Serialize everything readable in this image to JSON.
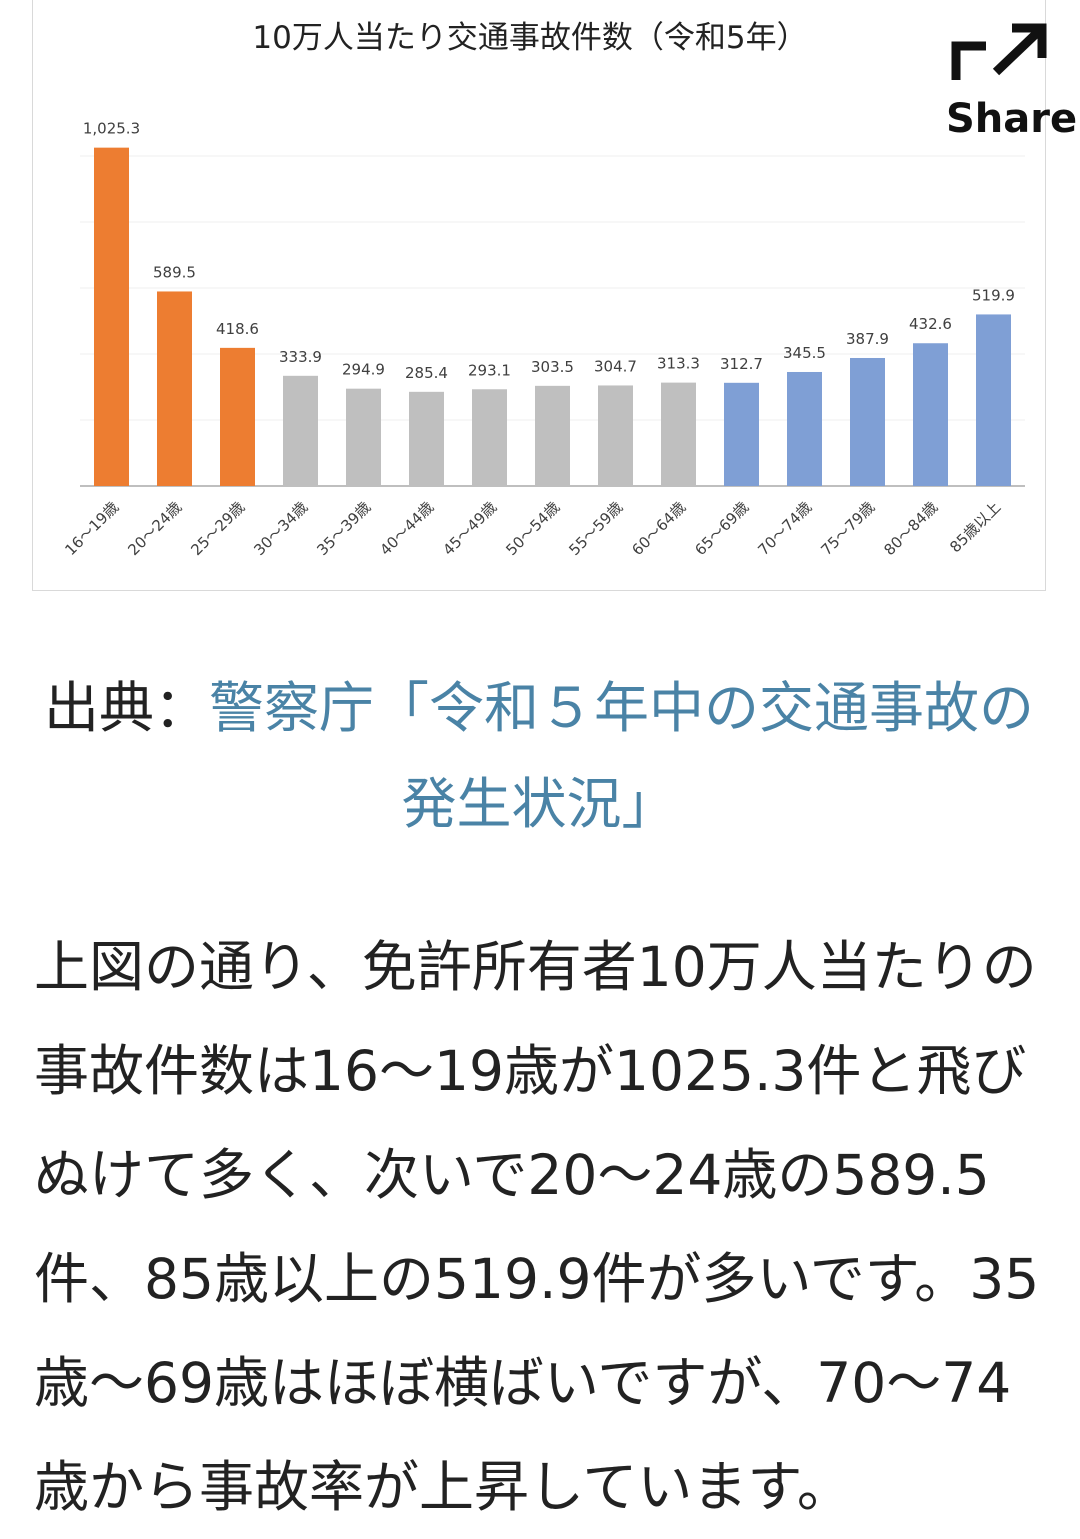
{
  "chart_data": {
    "type": "bar",
    "title": "10万人当たり交通事故件数（令和5年）",
    "categories": [
      "16～19歳",
      "20～24歳",
      "25～29歳",
      "30～34歳",
      "35～39歳",
      "40～44歳",
      "45～49歳",
      "50～54歳",
      "55～59歳",
      "60～64歳",
      "65～69歳",
      "70～74歳",
      "75～79歳",
      "80～84歳",
      "85歳以上"
    ],
    "values": [
      1025.3,
      589.5,
      418.6,
      333.9,
      294.9,
      285.4,
      293.1,
      303.5,
      304.7,
      313.3,
      312.7,
      345.5,
      387.9,
      432.6,
      519.9
    ],
    "value_labels": [
      "1,025.3",
      "589.5",
      "418.6",
      "333.9",
      "294.9",
      "285.4",
      "293.1",
      "303.5",
      "304.7",
      "313.3",
      "312.7",
      "345.5",
      "387.9",
      "432.6",
      "519.9"
    ],
    "bar_colors": [
      "#ed7d31",
      "#ed7d31",
      "#ed7d31",
      "#bfbfbf",
      "#bfbfbf",
      "#bfbfbf",
      "#bfbfbf",
      "#bfbfbf",
      "#bfbfbf",
      "#bfbfbf",
      "#7f9fd5",
      "#7f9fd5",
      "#7f9fd5",
      "#7f9fd5",
      "#7f9fd5"
    ],
    "ylim": [
      0,
      1000
    ],
    "grid": true,
    "xlabel": "",
    "ylabel": ""
  },
  "share": {
    "label": "Share",
    "icon": "share-arrow-icon"
  },
  "source": {
    "prefix": "出典：",
    "link_text": "警察庁「令和５年中の交通事故の発生状況」"
  },
  "body": {
    "paragraph": "上図の通り、免許所有者10万人当たりの事故件数は16～19歳が1025.3件と飛びぬけて多く、次いで20～24歳の589.5件、85歳以上の519.9件が多いです。35歳～69歳はほぼ横ばいですが、70～74歳から事故率が上昇しています。"
  },
  "colors": {
    "link": "#4a83a6",
    "text": "#222222"
  }
}
